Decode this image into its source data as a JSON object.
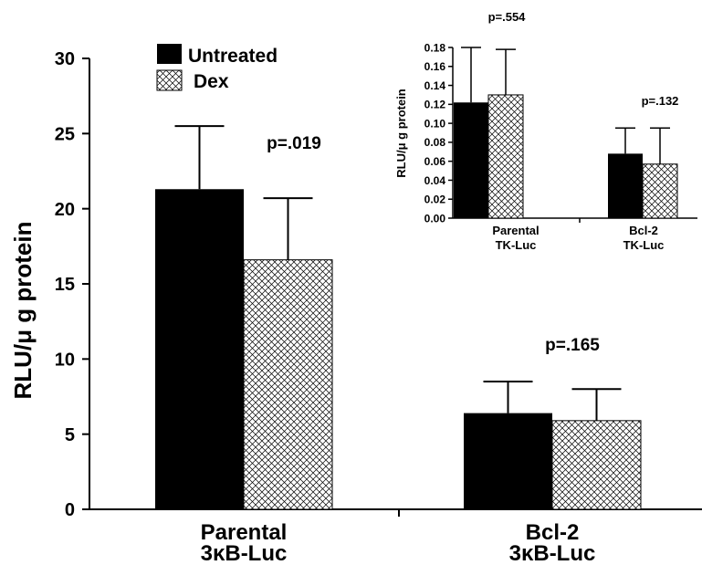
{
  "colors": {
    "untreated": "#000000",
    "dex": "#ffffff",
    "axis": "#000000",
    "hatch": "#000000"
  },
  "chart_data": [
    {
      "type": "bar",
      "ylabel": "RLU/μ g protein",
      "ylim": [
        0,
        30
      ],
      "yticks": [
        "0",
        "5",
        "10",
        "15",
        "20",
        "25",
        "30"
      ],
      "categories": [
        {
          "line1": "Parental",
          "line2": "3κB-Luc"
        },
        {
          "line1": "Bcl-2",
          "line2": "3κB-Luc"
        }
      ],
      "series": [
        {
          "name": "Untreated",
          "values": [
            21.3,
            6.4
          ],
          "errors": [
            4.2,
            2.1
          ]
        },
        {
          "name": "Dex",
          "values": [
            16.6,
            5.9
          ],
          "errors": [
            4.1,
            2.1
          ]
        }
      ],
      "annotations": [
        "p=.019",
        "p=.165"
      ],
      "legend": "top-left"
    },
    {
      "type": "bar",
      "ylabel": "RLU/μ g protein",
      "ylim": [
        0,
        0.18
      ],
      "yticks": [
        "0.00",
        "0.02",
        "0.04",
        "0.06",
        "0.08",
        "0.10",
        "0.12",
        "0.14",
        "0.16",
        "0.18"
      ],
      "categories": [
        {
          "line1": "Parental",
          "line2": "TK-Luc"
        },
        {
          "line1": "Bcl-2",
          "line2": "TK-Luc"
        }
      ],
      "series": [
        {
          "name": "Untreated",
          "values": [
            0.122,
            0.068
          ],
          "errors": [
            0.058,
            0.027
          ]
        },
        {
          "name": "Dex",
          "values": [
            0.13,
            0.057
          ],
          "errors": [
            0.048,
            0.038
          ]
        }
      ],
      "annotations": [
        "p=.554",
        "p=.132"
      ]
    }
  ]
}
